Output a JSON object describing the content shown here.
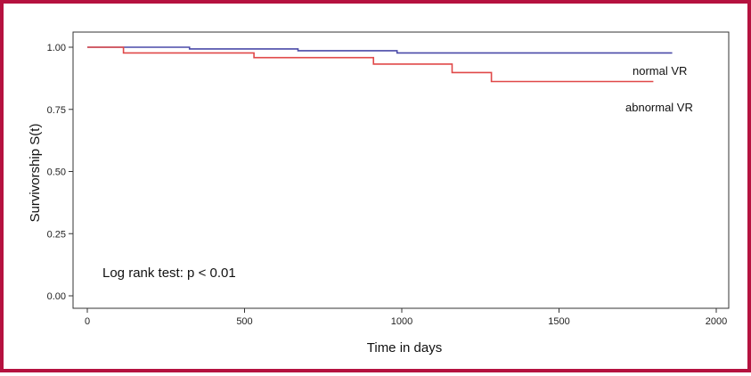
{
  "chart_data": {
    "type": "line",
    "step": true,
    "xlabel": "Time in days",
    "ylabel": "Survivorship S(t)",
    "xlim": [
      0,
      2000
    ],
    "ylim": [
      0,
      1
    ],
    "x_ticks": [
      0,
      500,
      1000,
      1500,
      2000
    ],
    "x_tick_labels": [
      "0",
      "500",
      "1000",
      "1500",
      "2000"
    ],
    "y_ticks": [
      0,
      0.25,
      0.5,
      0.75,
      1
    ],
    "y_tick_labels": [
      "0.00",
      "0.25",
      "0.50",
      "0.75",
      "1.00"
    ],
    "grid": false,
    "annotation": "Log rank test: p < 0.01",
    "series": [
      {
        "name": "normal VR",
        "color": "#4a4aa8",
        "x": [
          0,
          325,
          670,
          985,
          1860
        ],
        "y": [
          1.0,
          0.993,
          0.986,
          0.977,
          0.977
        ]
      },
      {
        "name": "abnormal VR",
        "color": "#e04848",
        "x": [
          0,
          115,
          530,
          910,
          1160,
          1285,
          1800
        ],
        "y": [
          1.0,
          0.977,
          0.958,
          0.932,
          0.898,
          0.862,
          0.862
        ]
      }
    ]
  }
}
